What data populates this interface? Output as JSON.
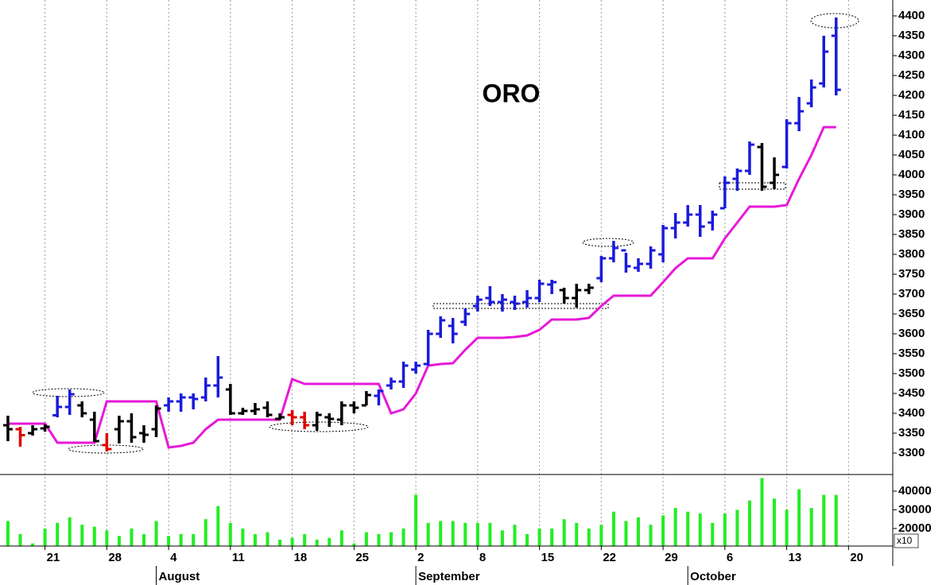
{
  "chart_data": [
    {
      "type": "ohlc",
      "title": "ORO",
      "xlim": [
        -0.64,
        71.58
      ],
      "ylim": [
        3246,
        4440
      ],
      "yticks": [
        3300,
        3350,
        3400,
        3450,
        3500,
        3550,
        3600,
        3650,
        3700,
        3750,
        3800,
        3850,
        3900,
        3950,
        4000,
        4050,
        4100,
        4150,
        4200,
        4250,
        4300,
        4350,
        4400
      ],
      "grid": true,
      "open": [
        3370,
        3360,
        3350,
        3362,
        3395,
        3416,
        3420,
        3384,
        3320,
        3360,
        3380,
        3350,
        3360,
        3420,
        3430,
        3440,
        3440,
        3470,
        3460,
        3400,
        3406,
        3414,
        3386,
        3396,
        3390,
        3370,
        3390,
        3384,
        3420,
        3420,
        3444,
        3470,
        3480,
        3510,
        3524,
        3600,
        3620,
        3630,
        3670,
        3690,
        3680,
        3680,
        3680,
        3690,
        3724,
        3710,
        3690,
        3710,
        3740,
        3790,
        3810,
        3766,
        3776,
        3800,
        3866,
        3880,
        3900,
        3880,
        3916,
        3990,
        4010,
        4070,
        3980,
        4020,
        4130,
        4180,
        4230,
        4350
      ],
      "high": [
        3394,
        3366,
        3370,
        3372,
        3444,
        3460,
        3430,
        3404,
        3350,
        3394,
        3400,
        3370,
        3420,
        3440,
        3450,
        3450,
        3490,
        3544,
        3474,
        3414,
        3426,
        3430,
        3400,
        3408,
        3404,
        3404,
        3400,
        3430,
        3430,
        3456,
        3460,
        3490,
        3530,
        3530,
        3610,
        3644,
        3640,
        3664,
        3696,
        3720,
        3700,
        3696,
        3710,
        3736,
        3736,
        3716,
        3726,
        3726,
        3796,
        3834,
        3804,
        3790,
        3820,
        3874,
        3904,
        3924,
        3924,
        3910,
        3996,
        4016,
        4084,
        4080,
        4044,
        4140,
        4196,
        4240,
        4350,
        4396
      ],
      "low": [
        3330,
        3316,
        3344,
        3354,
        3390,
        3396,
        3390,
        3328,
        3304,
        3324,
        3326,
        3326,
        3340,
        3404,
        3404,
        3410,
        3430,
        3440,
        3396,
        3396,
        3396,
        3390,
        3384,
        3370,
        3360,
        3356,
        3366,
        3370,
        3400,
        3420,
        3420,
        3460,
        3464,
        3500,
        3520,
        3590,
        3576,
        3620,
        3656,
        3670,
        3656,
        3660,
        3666,
        3680,
        3700,
        3676,
        3666,
        3700,
        3730,
        3780,
        3754,
        3756,
        3764,
        3780,
        3840,
        3870,
        3844,
        3860,
        3916,
        3960,
        4000,
        3960,
        3964,
        4016,
        4110,
        4170,
        4220,
        4200
      ],
      "close": [
        3360,
        3345,
        3360,
        3366,
        3416,
        3448,
        3400,
        3330,
        3310,
        3380,
        3340,
        3346,
        3412,
        3430,
        3440,
        3436,
        3470,
        3490,
        3400,
        3406,
        3410,
        3396,
        3390,
        3390,
        3370,
        3396,
        3386,
        3420,
        3414,
        3446,
        3456,
        3480,
        3520,
        3520,
        3600,
        3634,
        3600,
        3650,
        3686,
        3680,
        3686,
        3676,
        3690,
        3726,
        3730,
        3690,
        3710,
        3716,
        3790,
        3816,
        3770,
        3776,
        3810,
        3866,
        3880,
        3900,
        3870,
        3900,
        3980,
        4010,
        4076,
        3970,
        4000,
        4130,
        4160,
        4220,
        4310,
        4214
      ],
      "bar_colors": [
        "#000000",
        "#e00000",
        "#000000",
        "#000000",
        "#1a1adc",
        "#1a1adc",
        "#000000",
        "#000000",
        "#e00000",
        "#000000",
        "#000000",
        "#000000",
        "#000000",
        "#1a1adc",
        "#1a1adc",
        "#1a1adc",
        "#1a1adc",
        "#1a1adc",
        "#000000",
        "#000000",
        "#000000",
        "#000000",
        "#000000",
        "#e00000",
        "#e00000",
        "#000000",
        "#000000",
        "#000000",
        "#000000",
        "#000000",
        "#1a1adc",
        "#1a1adc",
        "#1a1adc",
        "#1a1adc",
        "#1a1adc",
        "#1a1adc",
        "#1a1adc",
        "#1a1adc",
        "#1a1adc",
        "#1a1adc",
        "#1a1adc",
        "#1a1adc",
        "#1a1adc",
        "#1a1adc",
        "#1a1adc",
        "#000000",
        "#000000",
        "#000000",
        "#1a1adc",
        "#1a1adc",
        "#1a1adc",
        "#1a1adc",
        "#1a1adc",
        "#1a1adc",
        "#1a1adc",
        "#1a1adc",
        "#1a1adc",
        "#1a1adc",
        "#1a1adc",
        "#1a1adc",
        "#1a1adc",
        "#000000",
        "#000000",
        "#1a1adc",
        "#1a1adc",
        "#1a1adc",
        "#1a1adc",
        "#1a1adc"
      ],
      "stop_line": {
        "color": "#e619d8",
        "values": [
          3374,
          3374,
          3374,
          3374,
          3326,
          3326,
          3326,
          3326,
          3430,
          3430,
          3430,
          3430,
          3430,
          3314,
          3318,
          3326,
          3360,
          3384,
          3384,
          3384,
          3384,
          3384,
          3384,
          3486,
          3474,
          3474,
          3474,
          3474,
          3474,
          3474,
          3474,
          3400,
          3410,
          3450,
          3520,
          3524,
          3526,
          3560,
          3590,
          3590,
          3590,
          3592,
          3596,
          3610,
          3636,
          3636,
          3636,
          3640,
          3670,
          3696,
          3696,
          3696,
          3696,
          3730,
          3765,
          3790,
          3790,
          3790,
          3840,
          3880,
          3920,
          3920,
          3920,
          3924,
          3990,
          4050,
          4120,
          4120
        ]
      }
    },
    {
      "type": "bar",
      "xlim": [
        -0.64,
        71.58
      ],
      "ylim": [
        10600,
        48900
      ],
      "yticks": [
        20000,
        30000,
        40000
      ],
      "scale_label": "x10",
      "color": "#22ee22",
      "values": [
        24000,
        17000,
        12000,
        20000,
        23000,
        26000,
        22000,
        21000,
        19000,
        16000,
        20000,
        17000,
        24000,
        16000,
        17000,
        17000,
        25000,
        32000,
        23000,
        20000,
        17000,
        18000,
        14000,
        15000,
        17000,
        14000,
        15000,
        19000,
        12000,
        18000,
        17000,
        18000,
        20000,
        38000,
        23000,
        24000,
        24000,
        23000,
        23000,
        23000,
        19000,
        22000,
        17000,
        20000,
        20000,
        25000,
        23000,
        20000,
        22000,
        29000,
        24000,
        26000,
        22000,
        27000,
        31000,
        29000,
        28000,
        23000,
        28000,
        30000,
        35000,
        47000,
        36000,
        30000,
        41000,
        31000,
        38000,
        38000
      ],
      "xticks": [
        {
          "value": 3,
          "label": "21"
        },
        {
          "value": 8,
          "label": "28"
        },
        {
          "value": 13,
          "label": "4"
        },
        {
          "value": 18,
          "label": "11"
        },
        {
          "value": 23,
          "label": "18"
        },
        {
          "value": 28,
          "label": "25"
        },
        {
          "value": 33,
          "label": "2"
        },
        {
          "value": 38,
          "label": "8"
        },
        {
          "value": 43,
          "label": "15"
        },
        {
          "value": 48,
          "label": "22"
        },
        {
          "value": 53,
          "label": "29"
        },
        {
          "value": 58,
          "label": "6"
        },
        {
          "value": 63,
          "label": "13"
        },
        {
          "value": 68,
          "label": "20"
        }
      ],
      "month_ticks": [
        {
          "value": 12,
          "label": "August"
        },
        {
          "value": 33,
          "label": "September"
        },
        {
          "value": 55,
          "label": "October"
        }
      ]
    }
  ]
}
